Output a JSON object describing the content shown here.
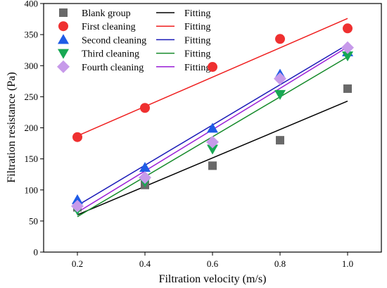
{
  "chart_data": {
    "type": "scatter",
    "xlabel": "Filtration velocity (m/s)",
    "ylabel": "Filtration resistance (Pa)",
    "xlim": [
      0.1,
      1.1
    ],
    "ylim": [
      0,
      400
    ],
    "xticks": [
      0.2,
      0.4,
      0.6,
      0.8,
      1.0
    ],
    "xtick_labels": [
      "0.2",
      "0.4",
      "0.6",
      "0.8",
      "1.0"
    ],
    "yticks": [
      0,
      50,
      100,
      150,
      200,
      250,
      300,
      350,
      400
    ],
    "ytick_labels": [
      "0",
      "50",
      "100",
      "150",
      "200",
      "250",
      "300",
      "350",
      "400"
    ],
    "grid": false,
    "legend_position": "top-left",
    "fit_label": "Fitting",
    "series": [
      {
        "name": "Blank group",
        "marker": "square",
        "color": "#696969",
        "fit_color": "#000000",
        "x": [
          0.2,
          0.4,
          0.6,
          0.8,
          1.0
        ],
        "y": [
          72,
          108,
          139,
          180,
          263
        ],
        "fit": [
          60,
          243
        ]
      },
      {
        "name": "First cleaning",
        "marker": "circle",
        "color": "#ef3030",
        "fit_color": "#ef1f1f",
        "x": [
          0.2,
          0.4,
          0.6,
          0.8,
          1.0
        ],
        "y": [
          185,
          232,
          298,
          343,
          360
        ],
        "fit": [
          187,
          376
        ]
      },
      {
        "name": "Second cleaning",
        "marker": "triangle-up",
        "color": "#1f5ce6",
        "fit_color": "#1a1ab8",
        "x": [
          0.2,
          0.4,
          0.6,
          0.8,
          1.0
        ],
        "y": [
          84,
          136,
          199,
          286,
          322
        ],
        "fit": [
          75,
          334
        ]
      },
      {
        "name": "Third cleaning",
        "marker": "triangle-down",
        "color": "#17a853",
        "fit_color": "#158a2a",
        "x": [
          0.2,
          0.4,
          0.6,
          0.8,
          1.0
        ],
        "y": [
          68,
          113,
          166,
          254,
          316
        ],
        "fit": [
          57,
          314
        ]
      },
      {
        "name": "Fourth cleaning",
        "marker": "diamond",
        "color": "#c79aea",
        "fit_color": "#9a1fd6",
        "x": [
          0.2,
          0.4,
          0.6,
          0.8,
          1.0
        ],
        "y": [
          74,
          120,
          177,
          279,
          329
        ],
        "fit": [
          64,
          330
        ]
      }
    ]
  }
}
